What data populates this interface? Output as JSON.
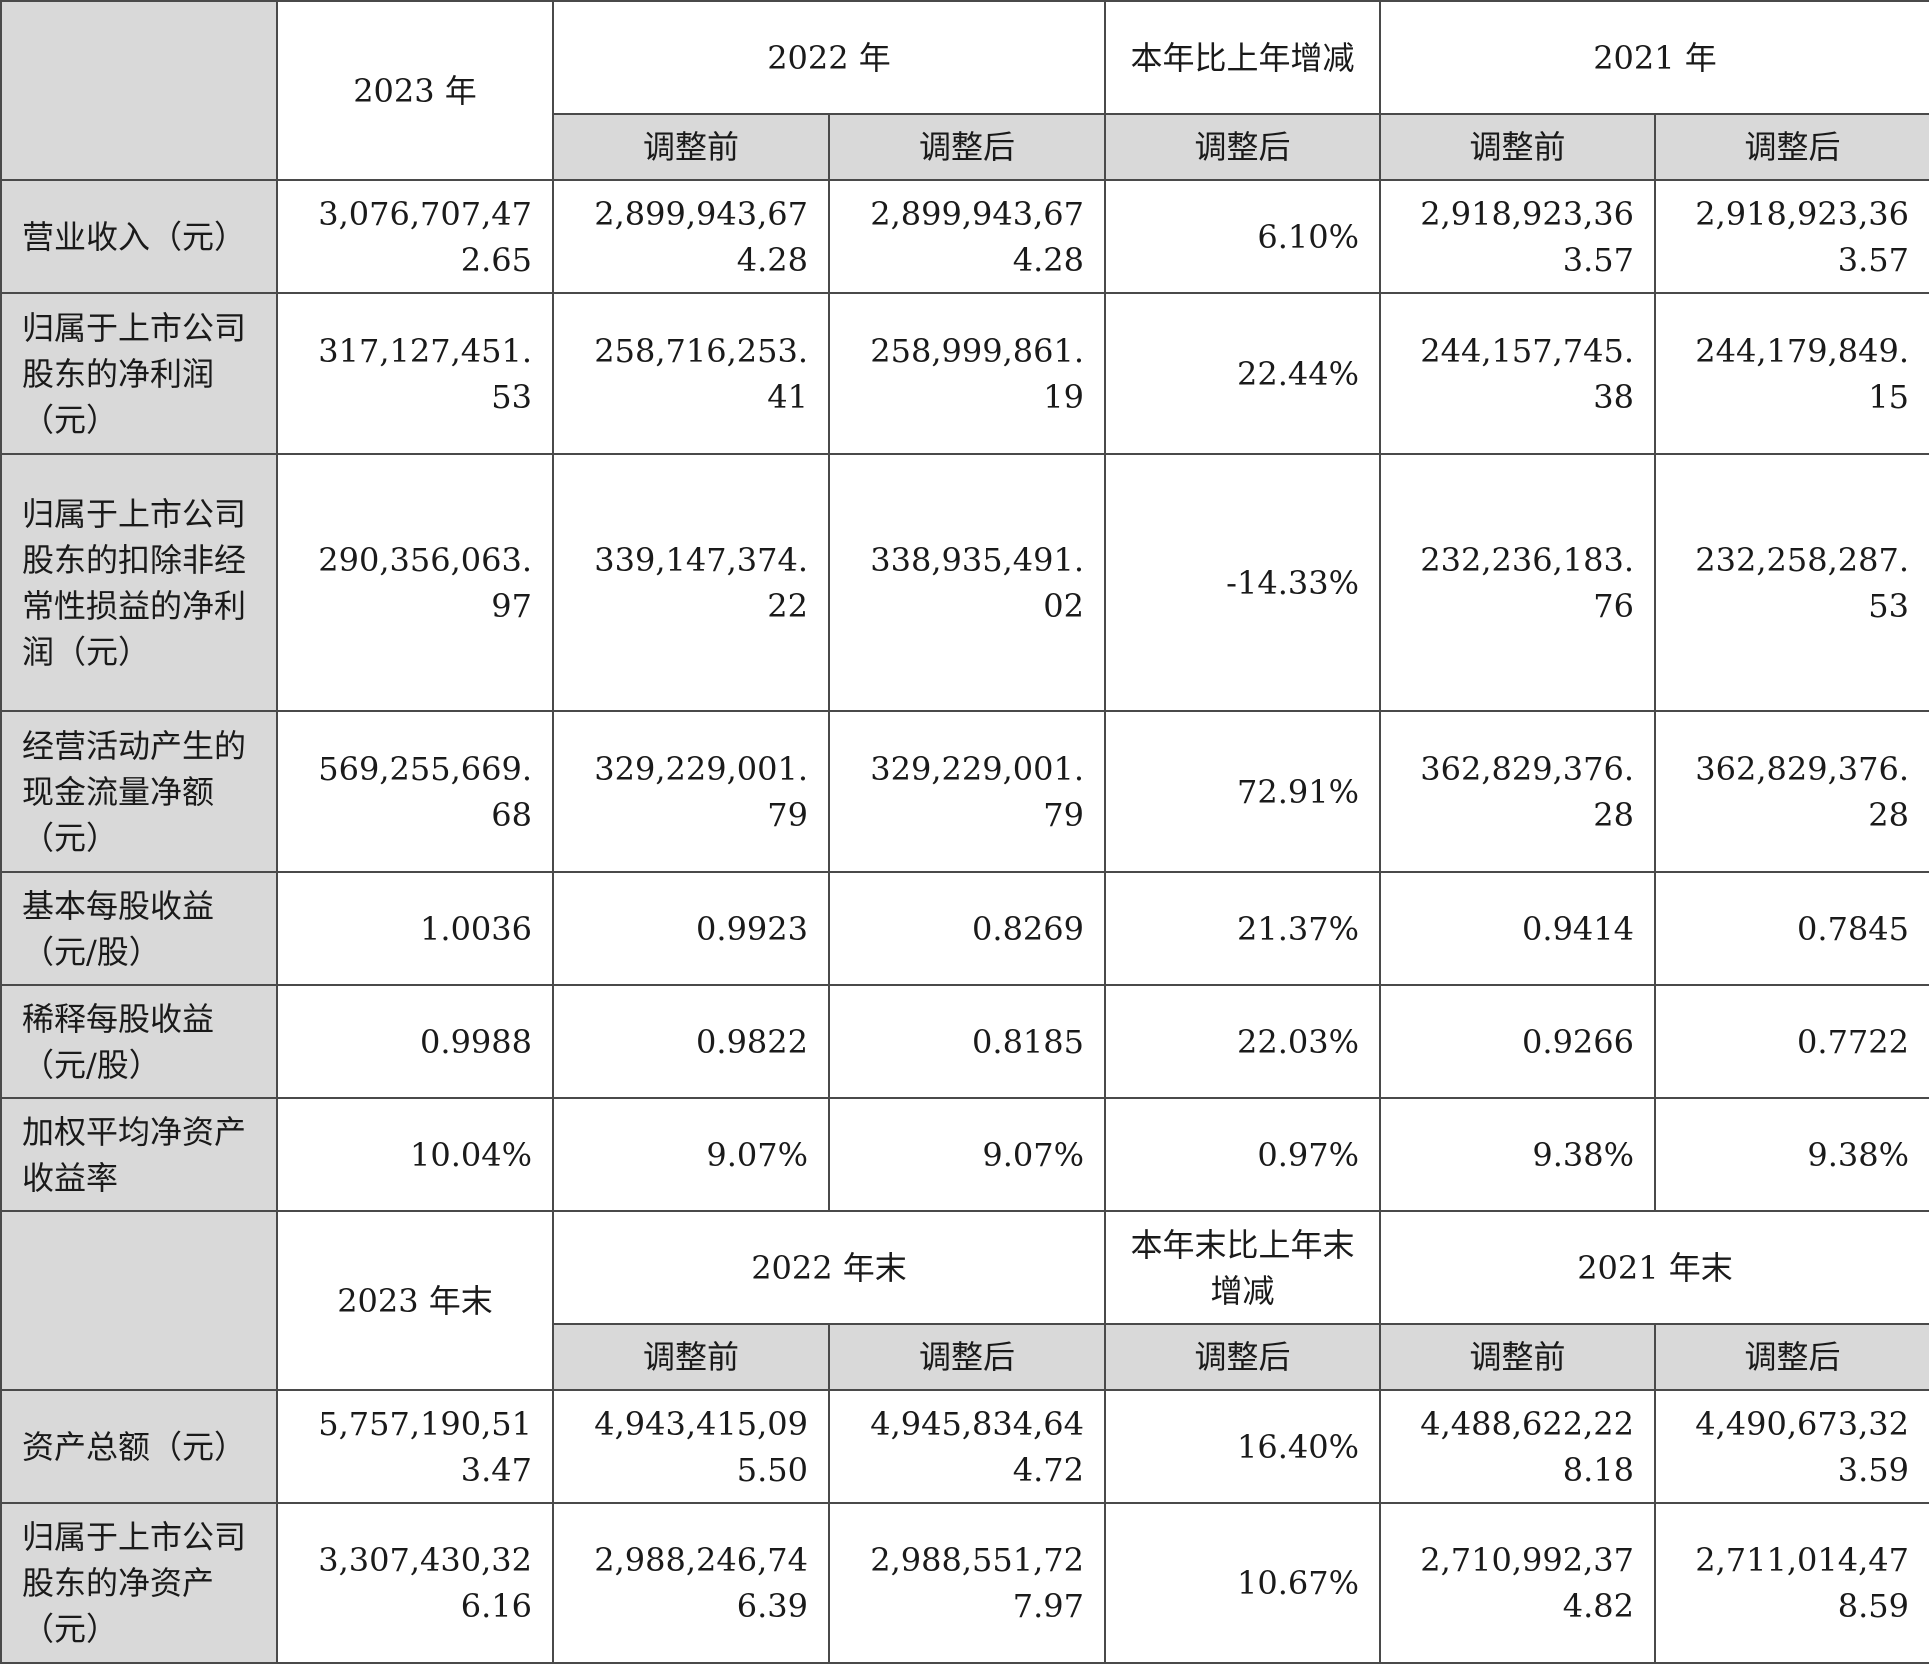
{
  "income_header": {
    "y2023": "2023 年",
    "y2022": "2022 年",
    "change": "本年比上年增减",
    "y2021": "2021 年",
    "before": "调整前",
    "after": "调整后"
  },
  "income_rows": [
    {
      "label": "营业收入（元）",
      "v2023": "3,076,707,472.65",
      "v2022_before": "2,899,943,674.28",
      "v2022_after": "2,899,943,674.28",
      "change": "6.10%",
      "v2021_before": "2,918,923,363.57",
      "v2021_after": "2,918,923,363.57"
    },
    {
      "label": "归属于上市公司股东的净利润（元）",
      "v2023": "317,127,451.53",
      "v2022_before": "258,716,253.41",
      "v2022_after": "258,999,861.19",
      "change": "22.44%",
      "v2021_before": "244,157,745.38",
      "v2021_after": "244,179,849.15"
    },
    {
      "label": "归属于上市公司股东的扣除非经常性损益的净利润（元）",
      "v2023": "290,356,063.97",
      "v2022_before": "339,147,374.22",
      "v2022_after": "338,935,491.02",
      "change": "-14.33%",
      "v2021_before": "232,236,183.76",
      "v2021_after": "232,258,287.53"
    },
    {
      "label": "经营活动产生的现金流量净额（元）",
      "v2023": "569,255,669.68",
      "v2022_before": "329,229,001.79",
      "v2022_after": "329,229,001.79",
      "change": "72.91%",
      "v2021_before": "362,829,376.28",
      "v2021_after": "362,829,376.28"
    },
    {
      "label": "基本每股收益（元/股）",
      "v2023": "1.0036",
      "v2022_before": "0.9923",
      "v2022_after": "0.8269",
      "change": "21.37%",
      "v2021_before": "0.9414",
      "v2021_after": "0.7845"
    },
    {
      "label": "稀释每股收益（元/股）",
      "v2023": "0.9988",
      "v2022_before": "0.9822",
      "v2022_after": "0.8185",
      "change": "22.03%",
      "v2021_before": "0.9266",
      "v2021_after": "0.7722"
    },
    {
      "label": "加权平均净资产收益率",
      "v2023": "10.04%",
      "v2022_before": "9.07%",
      "v2022_after": "9.07%",
      "change": "0.97%",
      "v2021_before": "9.38%",
      "v2021_after": "9.38%"
    }
  ],
  "balance_header": {
    "y2023": "2023 年末",
    "y2022": "2022 年末",
    "change": "本年末比上年末增减",
    "y2021": "2021 年末",
    "before": "调整前",
    "after": "调整后"
  },
  "balance_rows": [
    {
      "label": "资产总额（元）",
      "v2023": "5,757,190,513.47",
      "v2022_before": "4,943,415,095.50",
      "v2022_after": "4,945,834,644.72",
      "change": "16.40%",
      "v2021_before": "4,488,622,228.18",
      "v2021_after": "4,490,673,323.59"
    },
    {
      "label": "归属于上市公司股东的净资产（元）",
      "v2023": "3,307,430,326.16",
      "v2022_before": "2,988,246,746.39",
      "v2022_after": "2,988,551,727.97",
      "change": "10.67%",
      "v2021_before": "2,710,992,374.82",
      "v2021_after": "2,711,014,478.59"
    }
  ]
}
